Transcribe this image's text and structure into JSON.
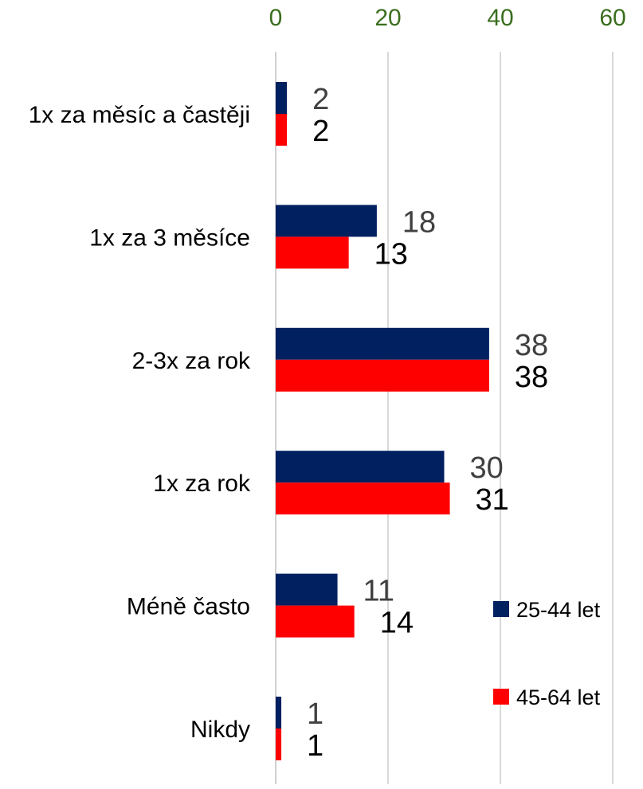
{
  "chart_data": {
    "type": "bar",
    "orientation": "horizontal",
    "categories": [
      "1x za měsíc a častěji",
      "1x za 3 měsíce",
      "2-3x za rok",
      "1x za rok",
      "Méně často",
      "Nikdy"
    ],
    "series": [
      {
        "name": "25-44 let",
        "values": [
          2,
          18,
          38,
          30,
          11,
          1
        ],
        "color": "#002060",
        "label_color": "#404040"
      },
      {
        "name": "45-64 let",
        "values": [
          2,
          13,
          38,
          31,
          14,
          1
        ],
        "color": "#ff0000",
        "label_color": "#000000"
      }
    ],
    "xlim": [
      0,
      60
    ],
    "x_ticks": [
      "0",
      "20",
      "40",
      "60"
    ],
    "grid": true,
    "legend_position": "bottom-right",
    "tick_color": "#3a6e1e",
    "grid_color": "#d9d9d9"
  }
}
